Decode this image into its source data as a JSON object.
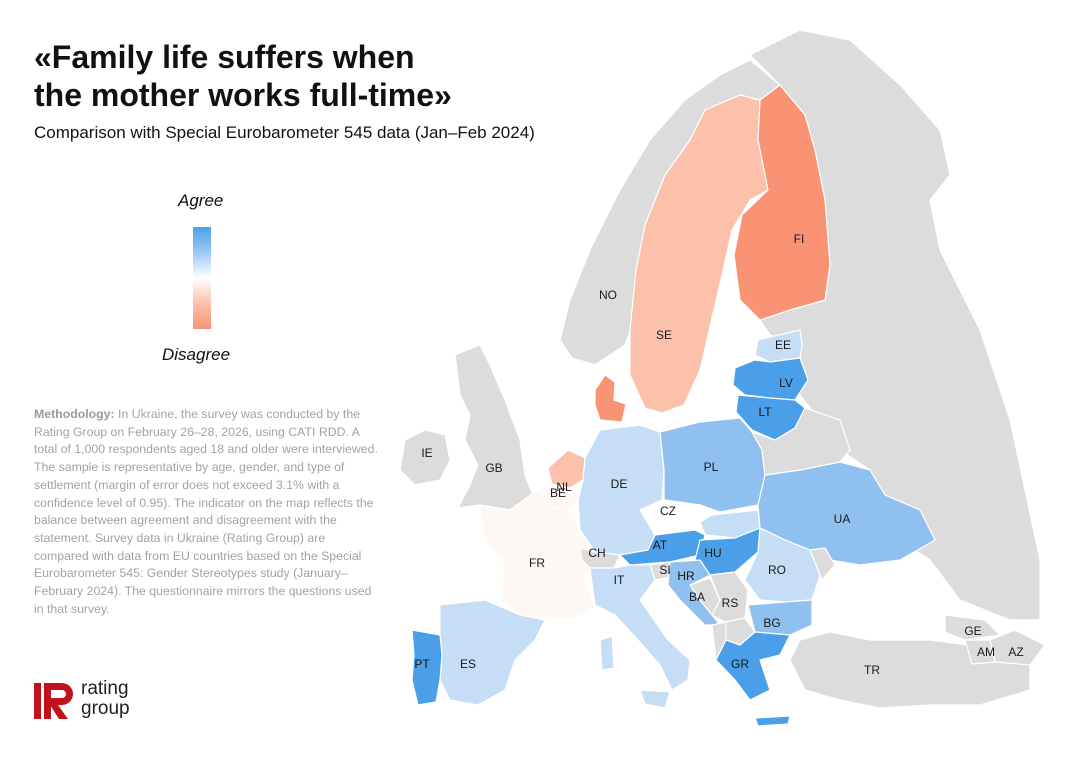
{
  "title": {
    "line1": "«Family life suffers when",
    "line2": "the mother works full-time»"
  },
  "subtitle": "Comparison with Special Eurobarometer 545 data (Jan–Feb 2024)",
  "legend": {
    "agree": "Agree",
    "disagree": "Disagree",
    "colors": {
      "agree": "#4a9fe8",
      "neutral": "#ffffff",
      "disagree": "#f99373"
    }
  },
  "methodology": {
    "label": "Methodology:",
    "text": " In Ukraine, the survey was conducted by the Rating Group on February 26–28, 2026, using CATI RDD. A total of 1,000 respondents aged 18 and older were interviewed. The sample is representative by age, gender, and type of settlement (margin of error does not exceed 3.1% with a confidence level of 0.95). The indicator on the map reflects the balance between agreement and disagreement with the statement. Survey data in Ukraine (Rating Group) are compared with data from EU countries based on the Special Eurobarometer 545: Gender Stereotypes study (January–February 2024). The questionnaire mirrors the questions used in that survey."
  },
  "logo": {
    "line1": "rating",
    "line2": "group",
    "color": "#c1121f"
  },
  "map": {
    "colors": {
      "no_data": "#dcdcdc",
      "border": "#ffffff",
      "strong_agree": "#4a9fe8",
      "agree": "#8fc0ef",
      "mild_agree": "#c6ddf6",
      "neutral": "#fdf8f3",
      "mild_disagree": "#fbc1ab",
      "disagree": "#f99373"
    },
    "countries": [
      {
        "code": "IE",
        "label": "IE"
      },
      {
        "code": "GB",
        "label": "GB"
      },
      {
        "code": "NO",
        "label": "NO"
      },
      {
        "code": "SE",
        "label": "SE"
      },
      {
        "code": "FI",
        "label": "FI"
      },
      {
        "code": "EE",
        "label": "EE"
      },
      {
        "code": "LV",
        "label": "LV"
      },
      {
        "code": "LT",
        "label": "LT"
      },
      {
        "code": "NL",
        "label": "NL"
      },
      {
        "code": "BE",
        "label": "BE"
      },
      {
        "code": "DE",
        "label": "DE"
      },
      {
        "code": "PL",
        "label": "PL"
      },
      {
        "code": "CZ",
        "label": "CZ"
      },
      {
        "code": "FR",
        "label": "FR"
      },
      {
        "code": "CH",
        "label": "CH"
      },
      {
        "code": "AT",
        "label": "AT"
      },
      {
        "code": "HU",
        "label": "HU"
      },
      {
        "code": "UA",
        "label": "UA"
      },
      {
        "code": "RO",
        "label": "RO"
      },
      {
        "code": "SI",
        "label": "SI"
      },
      {
        "code": "HR",
        "label": "HR"
      },
      {
        "code": "IT",
        "label": "IT"
      },
      {
        "code": "BA",
        "label": "BA"
      },
      {
        "code": "RS",
        "label": "RS"
      },
      {
        "code": "BG",
        "label": "BG"
      },
      {
        "code": "GR",
        "label": "GR"
      },
      {
        "code": "TR",
        "label": "TR"
      },
      {
        "code": "GE",
        "label": "GE"
      },
      {
        "code": "AM",
        "label": "AM"
      },
      {
        "code": "AZ",
        "label": "AZ"
      },
      {
        "code": "PT",
        "label": "PT"
      },
      {
        "code": "ES",
        "label": "ES"
      }
    ]
  }
}
